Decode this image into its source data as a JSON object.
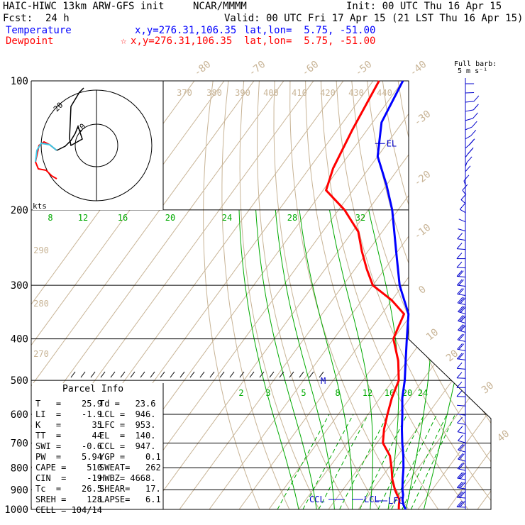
{
  "header": {
    "model": "HAIC-HIWC 13km ARW-GFS init",
    "org": "NCAR/MMMM",
    "init": "Init: 00 UTC Thu 16 Apr 15",
    "fcst_label": "Fcst:",
    "fcst_value": "24 h",
    "valid": "Valid: 00 UTC Fri 17 Apr 15 (21 LST Thu 16 Apr 15)",
    "temperature_label": "Temperature",
    "temperature_xy": "x,y=276.31,106.35",
    "temperature_latlon": "lat,lon=  5.75, -51.00",
    "dewpoint_label": "Dewpoint",
    "dewpoint_xy": "x,y=276.31,106.35",
    "dewpoint_latlon": "lat,lon=  5.75, -51.00",
    "barb_key_line1": "Full barb:",
    "barb_key_line2": "5 m s⁻¹"
  },
  "colors": {
    "temperature": "#0000ff",
    "dewpoint": "#ff0000",
    "isotherm": "#c8b496",
    "mixing_ratio": "#00aa00",
    "grid": "#000000",
    "hodograph_low": "#3cc8e6"
  },
  "chart_data": {
    "type": "line",
    "subtype": "skew-T log-P sounding",
    "pressure_levels_hpa": [
      100,
      200,
      300,
      400,
      500,
      600,
      700,
      800,
      900,
      1000
    ],
    "x_top_labels": [
      "-80",
      "-70",
      "-60",
      "-50",
      "-40"
    ],
    "x_right_labels": [
      "-30",
      "-20",
      "-10",
      "0",
      "10",
      "20",
      "30",
      "40"
    ],
    "theta_labels": [
      "370",
      "380",
      "390",
      "400",
      "410",
      "420",
      "430",
      "440"
    ],
    "left_theta_labels": [
      "290",
      "280",
      "270"
    ],
    "mixing_ratio_labels_upper": [
      "8",
      "12",
      "16",
      "20",
      "24",
      "28",
      "32"
    ],
    "mixing_ratio_labels_lower": [
      "2",
      "3",
      "5",
      "8",
      "12",
      "16",
      "20",
      "24"
    ],
    "series": [
      {
        "name": "Temperature",
        "color": "#0000ff",
        "p_hpa": [
          1000,
          975,
          950,
          925,
          900,
          850,
          800,
          750,
          700,
          650,
          600,
          550,
          500,
          450,
          400,
          350,
          300,
          250,
          200,
          175,
          150,
          125,
          100
        ],
        "temp_c": [
          25.9,
          24.0,
          22.5,
          21.5,
          20.0,
          17.5,
          15.0,
          12.0,
          8.5,
          5.0,
          1.5,
          -2.5,
          -6.0,
          -10.5,
          -15.5,
          -21.0,
          -31.0,
          -40.5,
          -52.0,
          -60.0,
          -70.0,
          -77.0,
          -80.0
        ]
      },
      {
        "name": "Dewpoint",
        "color": "#ff0000",
        "p_hpa": [
          1000,
          975,
          950,
          925,
          900,
          850,
          800,
          750,
          700,
          650,
          600,
          550,
          500,
          450,
          400,
          380,
          350,
          325,
          300,
          275,
          250,
          225,
          200,
          180,
          160,
          130,
          100
        ],
        "temp_c": [
          23.6,
          22.5,
          21.5,
          19.5,
          17.5,
          14.0,
          11.0,
          7.5,
          2.0,
          -1.0,
          -3.5,
          -6.0,
          -8.0,
          -13.0,
          -20.0,
          -21.0,
          -22.5,
          -30.0,
          -40.0,
          -46.0,
          -52.0,
          -58.0,
          -68.0,
          -79.0,
          -82.0,
          -85.0,
          -88.0
        ]
      }
    ],
    "level_markers": [
      "EL",
      "M",
      "CCL",
      "LCL",
      "LFC"
    ],
    "hodograph": {
      "unit_label": "kts",
      "ring_labels": [
        "20",
        "10"
      ]
    }
  },
  "parcel_info": {
    "title": "Parcel Info",
    "rows": [
      [
        "T   =    25.9",
        "Td =   23.6"
      ],
      [
        "LI  =    -1.9",
        "LCL =  946."
      ],
      [
        "K   =      35",
        "LFC =  953."
      ],
      [
        "TT  =      44",
        "EL  =  140."
      ],
      [
        "SWI =    -0.6",
        "CCL =  947."
      ],
      [
        "PW  =    5.94",
        "YGP =    0.1"
      ],
      [
        "CAPE =    510",
        "SWEAT=   262"
      ],
      [
        "CIN  =    -19",
        "HWBZ= 4668."
      ],
      [
        "Tc  =    26.5",
        "SHEAR=   17."
      ],
      [
        "SREH =    128",
        "LAPSE=   6.1"
      ],
      [
        "CELL = 104/14",
        ""
      ]
    ]
  },
  "wind_profile": {
    "speed_kt": [
      3,
      4,
      5,
      6,
      6,
      7,
      9,
      10,
      10,
      9,
      8,
      8,
      7,
      6,
      5,
      4,
      4,
      5,
      6,
      7,
      9,
      10,
      11,
      13,
      15,
      17,
      18,
      16,
      14,
      12,
      10,
      8,
      7,
      6,
      5,
      4,
      4,
      5,
      6,
      8,
      10,
      12,
      14,
      15,
      16,
      17,
      18
    ],
    "dir_deg": [
      90,
      95,
      100,
      110,
      120,
      130,
      140,
      150,
      160,
      170,
      180,
      190,
      200,
      210,
      220,
      230,
      240,
      250,
      260,
      270,
      275,
      280,
      285,
      290,
      295,
      300,
      300,
      300,
      295,
      290,
      285,
      280,
      275,
      270,
      265,
      260,
      255,
      250,
      245,
      240,
      240,
      240,
      245,
      250,
      255,
      260,
      265
    ]
  }
}
